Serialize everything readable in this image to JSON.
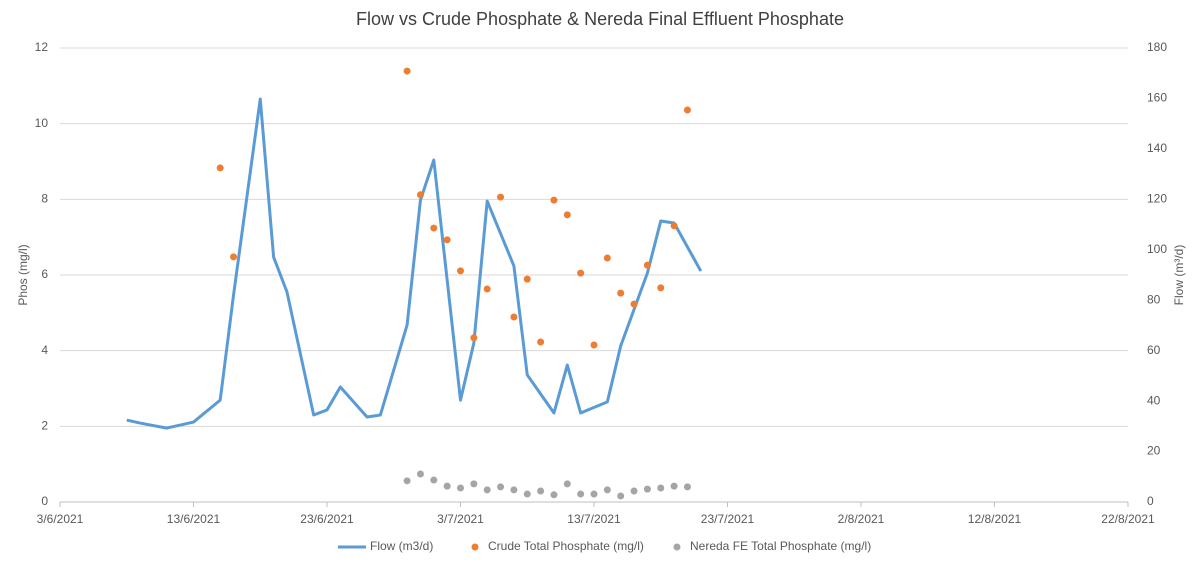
{
  "chart_data": {
    "type": "line-scatter",
    "title": "Flow vs Crude Phosphate & Nereda Final Effluent Phosphate",
    "ylabel": "Phos (mg/l)",
    "y2label": "Flow (m³/d)",
    "xlim": [
      "3/6/2021",
      "22/8/2021"
    ],
    "xticks": [
      "3/6/2021",
      "13/6/2021",
      "23/6/2021",
      "3/7/2021",
      "13/7/2021",
      "23/7/2021",
      "2/8/2021",
      "12/8/2021",
      "22/8/2021"
    ],
    "ylim": [
      0,
      12
    ],
    "yticks": [
      0,
      2,
      4,
      6,
      8,
      10,
      12
    ],
    "y2lim": [
      0,
      180
    ],
    "y2ticks": [
      0,
      20,
      40,
      60,
      80,
      100,
      120,
      140,
      160,
      180
    ],
    "grid": true,
    "legend": "bottom",
    "series": [
      {
        "name": "Flow (m3/d)",
        "kind": "line",
        "axis": "y2",
        "color": "#5b9bd5",
        "x": [
          "8/6/2021",
          "9/6/2021",
          "11/6/2021",
          "13/6/2021",
          "15/6/2021",
          "16/6/2021",
          "18/6/2021",
          "19/6/2021",
          "20/6/2021",
          "22/6/2021",
          "23/6/2021",
          "24/6/2021",
          "26/6/2021",
          "27/6/2021",
          "29/6/2021",
          "30/6/2021",
          "1/7/2021",
          "3/7/2021",
          "4/7/2021",
          "5/7/2021",
          "7/7/2021",
          "8/7/2021",
          "10/7/2021",
          "11/7/2021",
          "12/7/2021",
          "14/7/2021",
          "15/7/2021",
          "17/7/2021",
          "18/7/2021",
          "19/7/2021",
          "21/7/2021"
        ],
        "values": [
          32.5,
          31.3,
          29.3,
          31.7,
          40.4,
          82.1,
          159.8,
          97.1,
          83.3,
          34.5,
          36.5,
          45.6,
          33.7,
          34.5,
          70.2,
          119.7,
          135.6,
          40.4,
          63.0,
          119.3,
          93.6,
          50.4,
          35.3,
          54.3,
          35.3,
          39.7,
          61.9,
          90.8,
          111.4,
          110.6,
          91.6
        ]
      },
      {
        "name": "Crude Total Phosphate (mg/l)",
        "kind": "scatter",
        "color": "#ed7d31",
        "x": [
          "15/6/2021",
          "16/6/2021",
          "29/6/2021",
          "30/6/2021",
          "1/7/2021",
          "2/7/2021",
          "3/7/2021",
          "4/7/2021",
          "5/7/2021",
          "6/7/2021",
          "7/7/2021",
          "8/7/2021",
          "9/7/2021",
          "10/7/2021",
          "11/7/2021",
          "12/7/2021",
          "13/7/2021",
          "14/7/2021",
          "15/7/2021",
          "16/7/2021",
          "17/7/2021",
          "18/7/2021",
          "19/7/2021",
          "20/7/2021"
        ],
        "values": [
          8.83,
          6.48,
          11.39,
          8.12,
          7.24,
          6.93,
          6.11,
          4.34,
          5.63,
          8.06,
          4.89,
          5.89,
          4.23,
          7.98,
          7.59,
          6.05,
          4.15,
          6.45,
          5.52,
          5.23,
          6.26,
          5.66,
          7.3,
          10.36
        ]
      },
      {
        "name": "Nereda FE Total Phosphate (mg/l)",
        "kind": "scatter",
        "color": "#a5a5a5",
        "x": [
          "29/6/2021",
          "30/6/2021",
          "1/7/2021",
          "2/7/2021",
          "3/7/2021",
          "4/7/2021",
          "5/7/2021",
          "6/7/2021",
          "7/7/2021",
          "8/7/2021",
          "9/7/2021",
          "10/7/2021",
          "11/7/2021",
          "12/7/2021",
          "13/7/2021",
          "14/7/2021",
          "15/7/2021",
          "16/7/2021",
          "17/7/2021",
          "18/7/2021",
          "19/7/2021",
          "20/7/2021"
        ],
        "values": [
          0.56,
          0.74,
          0.58,
          0.42,
          0.37,
          0.48,
          0.32,
          0.4,
          0.32,
          0.21,
          0.29,
          0.19,
          0.48,
          0.21,
          0.21,
          0.32,
          0.16,
          0.29,
          0.34,
          0.37,
          0.42,
          0.4
        ]
      }
    ]
  }
}
